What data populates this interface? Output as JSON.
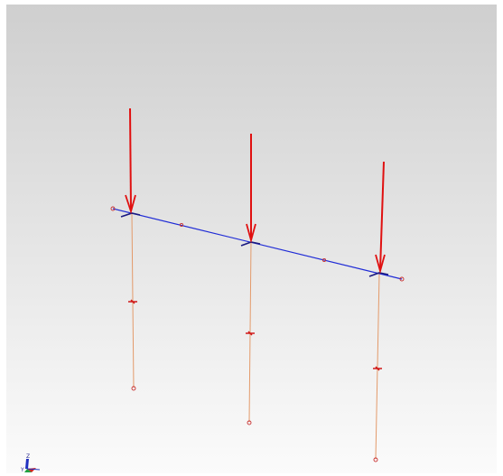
{
  "viewport": {
    "background_top": "#cfcfcf",
    "background_bottom": "#fbfbfb"
  },
  "model": {
    "beam_color": "#1f2bd6",
    "column_color": "#e39a6a",
    "load_color": "#e01010",
    "node_marker_color": "#c83030",
    "load_count": 3,
    "column_count": 3
  },
  "triad": {
    "icon": "coordinate-triad-icon",
    "z_label": "Z",
    "y_label": "Y",
    "x_color": "#d02020",
    "y_color": "#20a040",
    "z_color": "#2030c0"
  }
}
